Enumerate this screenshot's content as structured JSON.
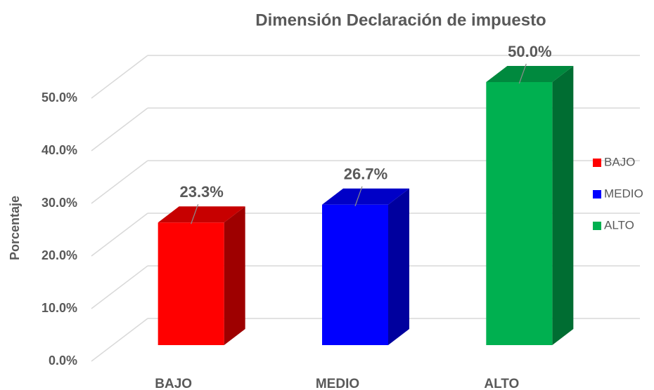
{
  "chart_data": {
    "type": "bar3d",
    "title": "Dimensión Declaración de impuesto",
    "y_label": "Porcentaje",
    "categories": [
      "BAJO",
      "MEDIO",
      "ALTO"
    ],
    "series": [
      {
        "name": "BAJO",
        "color": "#ff0000"
      },
      {
        "name": "MEDIO",
        "color": "#0000ff"
      },
      {
        "name": "ALTO",
        "color": "#00b050"
      }
    ],
    "values": [
      23.3,
      26.7,
      50.0
    ],
    "value_labels": [
      "23.3%",
      "26.7%",
      "50.0%"
    ],
    "ylim": [
      0,
      50
    ],
    "yticks": [
      {
        "value": 0,
        "label": "0.0%"
      },
      {
        "value": 10,
        "label": "10.0%"
      },
      {
        "value": 20,
        "label": "20.0%"
      },
      {
        "value": 30,
        "label": "30.0%"
      },
      {
        "value": 40,
        "label": "40.0%"
      },
      {
        "value": 50,
        "label": "50.0%"
      }
    ],
    "grid": true,
    "legend": "right"
  }
}
